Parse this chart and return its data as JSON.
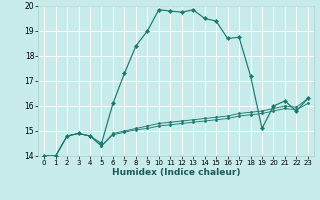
{
  "xlabel": "Humidex (Indice chaleur)",
  "bg_color": "#c8ecec",
  "grid_color": "#ffffff",
  "line_color": "#1a7a6e",
  "xlim": [
    -0.5,
    23.5
  ],
  "ylim": [
    14,
    20
  ],
  "xtick_labels": [
    "0",
    "1",
    "2",
    "3",
    "4",
    "5",
    "6",
    "7",
    "8",
    "9",
    "10",
    "11",
    "12",
    "13",
    "14",
    "15",
    "16",
    "17",
    "18",
    "19",
    "20",
    "21",
    "22",
    "23"
  ],
  "xticks": [
    0,
    1,
    2,
    3,
    4,
    5,
    6,
    7,
    8,
    9,
    10,
    11,
    12,
    13,
    14,
    15,
    16,
    17,
    18,
    19,
    20,
    21,
    22,
    23
  ],
  "yticks": [
    14,
    15,
    16,
    17,
    18,
    19,
    20
  ],
  "series": [
    {
      "x": [
        0,
        1,
        2,
        3,
        4,
        5,
        6,
        7,
        8,
        9,
        10,
        11,
        12,
        13,
        14,
        15,
        16,
        17,
        18,
        19,
        20,
        21,
        22,
        23
      ],
      "y": [
        14.0,
        14.0,
        14.8,
        14.9,
        14.8,
        14.5,
        16.1,
        17.3,
        18.4,
        19.0,
        19.85,
        19.8,
        19.75,
        19.85,
        19.5,
        19.4,
        18.7,
        18.75,
        17.2,
        15.1,
        16.0,
        16.2,
        15.8,
        16.3
      ]
    },
    {
      "x": [
        0,
        1,
        2,
        3,
        4,
        5,
        6,
        7,
        8,
        9,
        10,
        11,
        12,
        13,
        14,
        15,
        16,
        17,
        18,
        19,
        20,
        21,
        22,
        23
      ],
      "y": [
        14.0,
        14.0,
        14.8,
        14.9,
        14.8,
        14.4,
        14.9,
        15.0,
        15.1,
        15.2,
        15.3,
        15.35,
        15.4,
        15.45,
        15.5,
        15.55,
        15.6,
        15.7,
        15.75,
        15.8,
        15.9,
        16.0,
        15.95,
        16.3
      ]
    },
    {
      "x": [
        0,
        1,
        2,
        3,
        4,
        5,
        6,
        7,
        8,
        9,
        10,
        11,
        12,
        13,
        14,
        15,
        16,
        17,
        18,
        19,
        20,
        21,
        22,
        23
      ],
      "y": [
        14.0,
        14.0,
        14.8,
        14.9,
        14.8,
        14.4,
        14.85,
        14.95,
        15.05,
        15.1,
        15.2,
        15.25,
        15.3,
        15.35,
        15.4,
        15.45,
        15.5,
        15.6,
        15.65,
        15.7,
        15.8,
        15.9,
        15.85,
        16.1
      ]
    }
  ]
}
